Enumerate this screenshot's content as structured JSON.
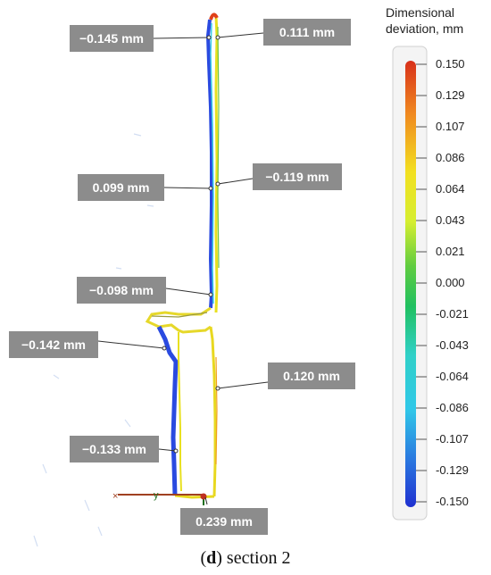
{
  "legend": {
    "title_line1": "Dimensional",
    "title_line2": "deviation, mm",
    "ticks": [
      "0.150",
      "0.129",
      "0.107",
      "0.086",
      "0.064",
      "0.043",
      "0.021",
      "0.000",
      "-0.021",
      "-0.043",
      "-0.064",
      "-0.086",
      "-0.107",
      "-0.129",
      "-0.150"
    ],
    "colors": {
      "top": "#e8401c",
      "orange": "#f0a020",
      "yellow": "#f2f020",
      "green": "#30c040",
      "cyan": "#30d8e0",
      "blue": "#1f3cd8"
    }
  },
  "callouts": [
    {
      "id": "c1",
      "text": "−0.145 mm"
    },
    {
      "id": "c2",
      "text": "0.111 mm"
    },
    {
      "id": "c3",
      "text": "0.099 mm"
    },
    {
      "id": "c4",
      "text": "−0.119 mm"
    },
    {
      "id": "c5",
      "text": "−0.098 mm"
    },
    {
      "id": "c6",
      "text": "−0.142 mm"
    },
    {
      "id": "c7",
      "text": "0.120 mm"
    },
    {
      "id": "c8",
      "text": "−0.133 mm"
    },
    {
      "id": "c9",
      "text": "0.239 mm"
    }
  ],
  "axis_marks": {
    "x": "×",
    "y": "y"
  },
  "caption": {
    "label": "(d)",
    "bold": "d",
    "text": "section 2"
  }
}
